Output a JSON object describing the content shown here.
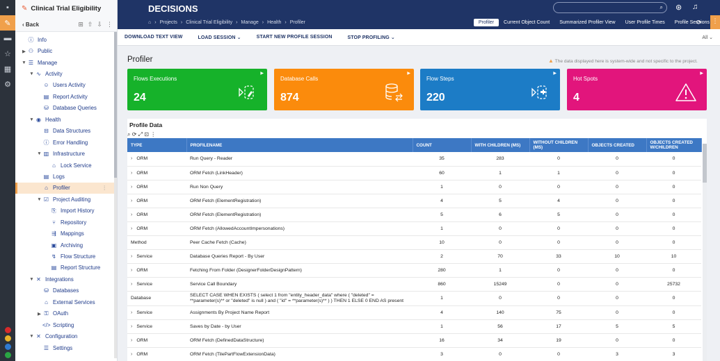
{
  "rail": {
    "icons": [
      "app-icon",
      "designer-icon",
      "folder-icon",
      "star-icon",
      "grid-icon",
      "gear-icon"
    ]
  },
  "sidebar": {
    "title": "Clinical Trial Eligibility",
    "back_label": "Back",
    "items": [
      {
        "label": "Info",
        "icon": "info-icon",
        "caret": "",
        "indent": 0
      },
      {
        "label": "Public",
        "icon": "people-icon",
        "caret": "▶",
        "indent": 0
      },
      {
        "label": "Manage",
        "icon": "sliders-icon",
        "caret": "▼",
        "indent": 0
      },
      {
        "label": "Activity",
        "icon": "activity-icon",
        "caret": "▼",
        "indent": 1
      },
      {
        "label": "Users Activity",
        "icon": "user-icon",
        "caret": "",
        "indent": 2
      },
      {
        "label": "Report Activity",
        "icon": "report-icon",
        "caret": "",
        "indent": 2
      },
      {
        "label": "Database Queries",
        "icon": "db-query-icon",
        "caret": "",
        "indent": 2
      },
      {
        "label": "Health",
        "icon": "health-icon",
        "caret": "▼",
        "indent": 1
      },
      {
        "label": "Data Structures",
        "icon": "data-structure-icon",
        "caret": "",
        "indent": 2
      },
      {
        "label": "Error Handling",
        "icon": "error-icon",
        "caret": "",
        "indent": 2
      },
      {
        "label": "Infrastructure",
        "icon": "infrastructure-icon",
        "caret": "▼",
        "indent": 2
      },
      {
        "label": "Lock Service",
        "icon": "lock-service-icon",
        "caret": "",
        "indent": 3
      },
      {
        "label": "Logs",
        "icon": "logs-icon",
        "caret": "",
        "indent": 2
      },
      {
        "label": "Profiler",
        "icon": "profiler-icon",
        "caret": "",
        "indent": 2,
        "selected": true
      },
      {
        "label": "Project Auditing",
        "icon": "auditing-icon",
        "caret": "▼",
        "indent": 2
      },
      {
        "label": "Import History",
        "icon": "import-icon",
        "caret": "",
        "indent": 3
      },
      {
        "label": "Repository",
        "icon": "repository-icon",
        "caret": "",
        "indent": 3
      },
      {
        "label": "Mappings",
        "icon": "mappings-icon",
        "caret": "",
        "indent": 3
      },
      {
        "label": "Archiving",
        "icon": "archive-icon",
        "caret": "",
        "indent": 3
      },
      {
        "label": "Flow Structure",
        "icon": "flow-icon",
        "caret": "",
        "indent": 3
      },
      {
        "label": "Report Structure",
        "icon": "report-structure-icon",
        "caret": "",
        "indent": 3
      },
      {
        "label": "Integrations",
        "icon": "integrations-icon",
        "caret": "▼",
        "indent": 1
      },
      {
        "label": "Databases",
        "icon": "databases-icon",
        "caret": "",
        "indent": 2
      },
      {
        "label": "External Services",
        "icon": "external-icon",
        "caret": "",
        "indent": 2
      },
      {
        "label": "OAuth",
        "icon": "oauth-icon",
        "caret": "▶",
        "indent": 2
      },
      {
        "label": "Scripting",
        "icon": "code-icon",
        "caret": "",
        "indent": 2
      },
      {
        "label": "Configuration",
        "icon": "config-icon",
        "caret": "▼",
        "indent": 1
      },
      {
        "label": "Settings",
        "icon": "settings-icon",
        "caret": "",
        "indent": 2
      }
    ]
  },
  "header": {
    "brand": "DECISIONS",
    "breadcrumb": [
      "Projects",
      "Clinical Trial Eligibility",
      "Manage",
      "Health",
      "Profiler"
    ],
    "tabs": [
      {
        "label": "Profiler",
        "active": true
      },
      {
        "label": "Current Object Count",
        "active": false
      },
      {
        "label": "Summarized Profiler View",
        "active": false
      },
      {
        "label": "User Profile Times",
        "active": false
      },
      {
        "label": "Profile Sessions",
        "active": false
      }
    ]
  },
  "toolbar": {
    "download": "DOWNLOAD TEXT VIEW",
    "load": "LOAD SESSION",
    "start": "START NEW PROFILE SESSION",
    "stop": "STOP PROFILING",
    "all": "All"
  },
  "page": {
    "title": "Profiler",
    "notice": "The data displayed here is system-wide and not specific to the project."
  },
  "cards": [
    {
      "label": "Flows Executions",
      "value": "24",
      "color": "#16b22a",
      "icon": "flow-rocket-icon"
    },
    {
      "label": "Database Calls",
      "value": "874",
      "color": "#fb8b0c",
      "icon": "database-icon"
    },
    {
      "label": "Flow Steps",
      "value": "220",
      "color": "#1c7cc6",
      "icon": "flow-puzzle-icon"
    },
    {
      "label": "Hot Spots",
      "value": "4",
      "color": "#e2157c",
      "icon": "warning-icon"
    }
  ],
  "table": {
    "title": "Profile Data",
    "columns": [
      "TYPE",
      "PROFILENAME",
      "COUNT",
      "WITH CHILDREN (MS)",
      "WITHOUT CHILDREN (MS)",
      "OBJECTS CREATED",
      "OBJECTS CREATED W/CHILDREN"
    ],
    "rows": [
      {
        "type": "ORM",
        "name": "Run Query - Reader",
        "count": "35",
        "with": "283",
        "without": "0",
        "obj": "0",
        "objc": "0",
        "exp": true
      },
      {
        "type": "ORM",
        "name": "ORM Fetch (LinkHeader)",
        "count": "60",
        "with": "1",
        "without": "1",
        "obj": "0",
        "objc": "0",
        "exp": true
      },
      {
        "type": "ORM",
        "name": "Run Non Query",
        "count": "1",
        "with": "0",
        "without": "0",
        "obj": "0",
        "objc": "0",
        "exp": true
      },
      {
        "type": "ORM",
        "name": "ORM Fetch (ElementRegistration)",
        "count": "4",
        "with": "5",
        "without": "4",
        "obj": "0",
        "objc": "0",
        "exp": true
      },
      {
        "type": "ORM",
        "name": "ORM Fetch (ElementRegistration)",
        "count": "5",
        "with": "6",
        "without": "5",
        "obj": "0",
        "objc": "0",
        "exp": true
      },
      {
        "type": "ORM",
        "name": "ORM Fetch (AllowedAccountImpersonations)",
        "count": "1",
        "with": "0",
        "without": "0",
        "obj": "0",
        "objc": "0",
        "exp": true
      },
      {
        "type": "Method",
        "name": "Peer Cache Fetch (Cache)",
        "count": "10",
        "with": "0",
        "without": "0",
        "obj": "0",
        "objc": "0",
        "exp": false
      },
      {
        "type": "Service",
        "name": "Database Queries Report - By User",
        "count": "2",
        "with": "70",
        "without": "33",
        "obj": "10",
        "objc": "10",
        "exp": true
      },
      {
        "type": "ORM",
        "name": "Fetching From Folder (DesignerFolderDesignPattern)",
        "count": "280",
        "with": "1",
        "without": "0",
        "obj": "0",
        "objc": "0",
        "exp": true
      },
      {
        "type": "Service",
        "name": "Service Call Boundary",
        "count": "860",
        "with": "15249",
        "without": "0",
        "obj": "0",
        "objc": "25732",
        "exp": true
      },
      {
        "type": "Database",
        "name": "SELECT CASE WHEN EXISTS ( select 1 from \"entity_header_data\" where ( \"deleted\" = **parameter(s)** or \"deleted\" is null ) and ( \"id\" = **parameter(s)** ) ) THEN 1 ELSE 0 END AS present",
        "count": "1",
        "with": "0",
        "without": "0",
        "obj": "0",
        "objc": "0",
        "exp": false,
        "wrap": true
      },
      {
        "type": "Service",
        "name": "Assignments By Project Name Report",
        "count": "4",
        "with": "140",
        "without": "75",
        "obj": "0",
        "objc": "0",
        "exp": true
      },
      {
        "type": "Service",
        "name": "Saves by Date - by User",
        "count": "1",
        "with": "56",
        "without": "17",
        "obj": "5",
        "objc": "5",
        "exp": true
      },
      {
        "type": "ORM",
        "name": "ORM Fetch (DefinedDataStructure)",
        "count": "16",
        "with": "34",
        "without": "19",
        "obj": "0",
        "objc": "0",
        "exp": true
      },
      {
        "type": "ORM",
        "name": "ORM Fetch (TilePartFlowExtensionData)",
        "count": "3",
        "with": "0",
        "without": "0",
        "obj": "3",
        "objc": "3",
        "exp": true
      }
    ]
  }
}
